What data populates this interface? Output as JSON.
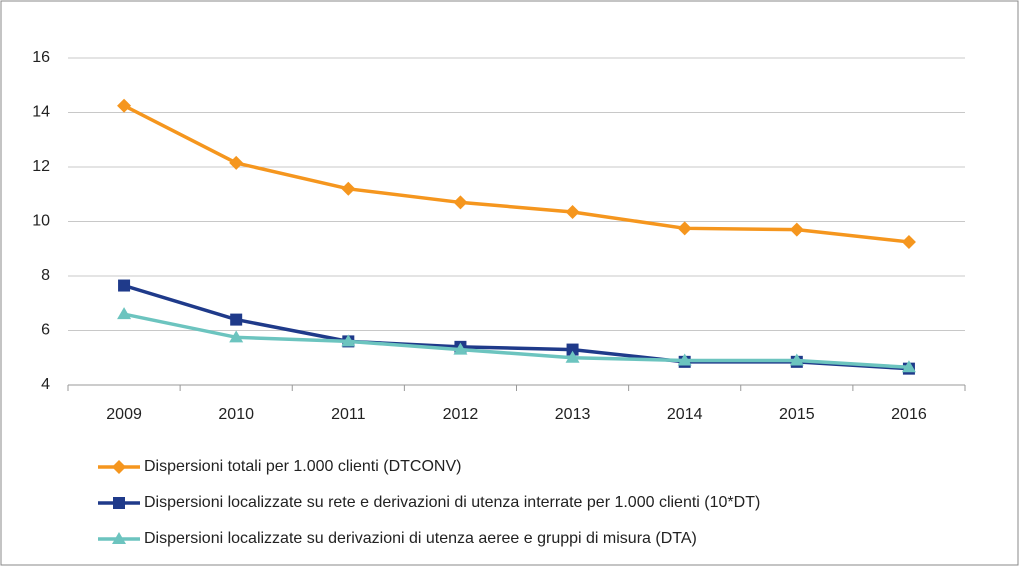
{
  "chart_data": {
    "type": "line",
    "categories": [
      "2009",
      "2010",
      "2011",
      "2012",
      "2013",
      "2014",
      "2015",
      "2016"
    ],
    "series": [
      {
        "name": "Dispersioni totali per 1.000 clienti (DTCONV)",
        "color": "#f5961e",
        "marker": "diamond",
        "values": [
          14.25,
          12.15,
          11.2,
          10.7,
          10.35,
          9.75,
          9.7,
          9.25
        ]
      },
      {
        "name": "Dispersioni localizzate su rete e derivazioni di utenza interrate per 1.000 clienti (10*DT)",
        "color": "#1f3a8a",
        "marker": "square",
        "values": [
          7.65,
          6.4,
          5.6,
          5.4,
          5.3,
          4.85,
          4.85,
          4.6
        ]
      },
      {
        "name": "Dispersioni localizzate su derivazioni di utenza aeree e gruppi di misura (DTA)",
        "color": "#6cc4bf",
        "marker": "triangle",
        "values": [
          6.6,
          5.75,
          5.6,
          5.3,
          5.0,
          4.9,
          4.9,
          4.65
        ]
      }
    ],
    "ylim": [
      4,
      16
    ],
    "yticks": [
      4,
      6,
      8,
      10,
      12,
      14,
      16
    ],
    "grid": true,
    "legend": "bottom"
  }
}
